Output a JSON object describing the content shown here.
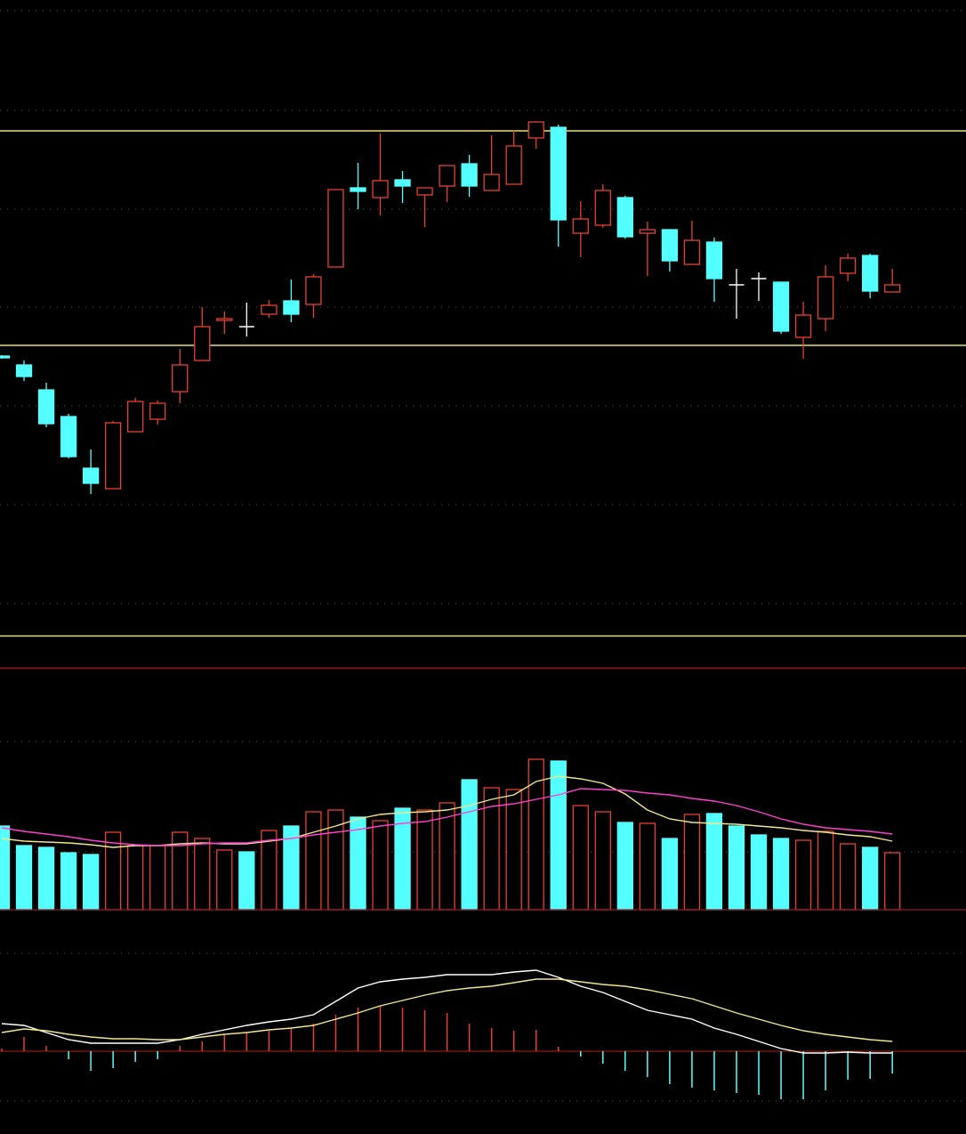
{
  "chart_data": [
    {
      "type": "candlestick",
      "open": [
        40.0,
        39.0,
        36.2,
        33.2,
        27.4,
        25.1,
        31.5,
        32.9,
        36.0,
        39.5,
        44.0,
        43.3,
        44.7,
        46.2,
        45.8,
        50.0,
        58.9,
        57.8,
        59.8,
        58.1,
        59.1,
        61.6,
        58.6,
        59.3,
        64.5,
        65.7,
        53.8,
        54.7,
        57.8,
        53.8,
        54.2,
        50.3,
        52.8,
        48.0,
        48.7,
        48.3,
        42.1,
        44.2,
        49.3,
        51.3,
        47.2
      ],
      "high": [
        40.1,
        39.5,
        37.0,
        33.5,
        29.5,
        32.7,
        35.3,
        35.0,
        40.8,
        45.5,
        45.0,
        46.0,
        46.3,
        48.6,
        49.2,
        58.7,
        61.7,
        65.0,
        60.8,
        58.9,
        61.4,
        62.6,
        64.8,
        65.4,
        66.3,
        66.0,
        57.4,
        59.3,
        58.0,
        55.1,
        54.2,
        55.2,
        53.3,
        49.8,
        49.4,
        48.3,
        46.1,
        50.2,
        51.5,
        51.5,
        49.8
      ],
      "low": [
        39.7,
        37.2,
        32.0,
        28.5,
        24.5,
        25.1,
        31.5,
        32.3,
        34.7,
        39.5,
        42.5,
        42.2,
        44.3,
        43.8,
        44.3,
        50.0,
        56.5,
        55.8,
        57.2,
        54.5,
        57.3,
        57.9,
        58.6,
        59.3,
        63.3,
        52.3,
        51.1,
        54.4,
        53.2,
        49.0,
        49.5,
        50.3,
        46.1,
        44.2,
        46.2,
        42.5,
        39.7,
        42.8,
        48.4,
        46.5,
        47.2
      ],
      "close": [
        39.8,
        37.7,
        32.4,
        28.7,
        25.7,
        32.5,
        34.9,
        34.7,
        39.0,
        43.3,
        44.2,
        43.3,
        45.7,
        44.7,
        48.9,
        58.7,
        58.5,
        59.7,
        59.1,
        58.9,
        61.4,
        59.1,
        60.4,
        63.6,
        66.3,
        55.3,
        55.4,
        58.6,
        53.4,
        54.2,
        50.7,
        53.0,
        48.7,
        48.0,
        48.7,
        42.8,
        44.6,
        48.9,
        51.0,
        47.3,
        48.0
      ],
      "ylim": [
        8,
        80
      ],
      "yticks": [
        78.8,
        67.6,
        56.5,
        45.5,
        34.4,
        23.3,
        12.2
      ],
      "grid": true,
      "hlines": [
        65.3,
        41.2
      ],
      "hline_color": "#e8e07a",
      "up_color": "#e8412f",
      "down_color": "#54ffff",
      "doji_color": "#ffffff"
    },
    {
      "type": "volume",
      "values": [
        94,
        72,
        70,
        64,
        62,
        87,
        72,
        72,
        87,
        80,
        67,
        65,
        89,
        94,
        110,
        112,
        104,
        100,
        114,
        112,
        120,
        146,
        137,
        135,
        169,
        167,
        117,
        110,
        98,
        97,
        80,
        107,
        108,
        94,
        84,
        80,
        78,
        88,
        74,
        70,
        64
      ],
      "ylim": [
        0,
        200
      ],
      "yticks": [
        189,
        65
      ],
      "grid": true,
      "series": [
        {
          "color": "#f0e68c",
          "values": [
            80,
            77,
            76,
            75,
            73,
            70,
            72,
            72,
            74,
            75,
            74,
            74,
            77,
            80,
            87,
            94,
            102,
            107,
            109,
            110,
            112,
            117,
            124,
            129,
            144,
            150,
            147,
            142,
            130,
            112,
            102,
            98,
            97,
            96,
            94,
            92,
            89,
            87,
            84,
            82,
            77
          ]
        },
        {
          "color": "#ff3fd0",
          "values": [
            92,
            88,
            85,
            82,
            78,
            75,
            73,
            72,
            72,
            74,
            75,
            75,
            78,
            80,
            84,
            87,
            90,
            94,
            97,
            99,
            104,
            110,
            116,
            119,
            124,
            129,
            136,
            135,
            134,
            131,
            129,
            125,
            122,
            117,
            110,
            102,
            96,
            92,
            90,
            88,
            85
          ]
        }
      ]
    },
    {
      "type": "macd",
      "histogram": [
        3,
        16,
        6,
        -9,
        -22,
        -19,
        -12,
        -9,
        6,
        11,
        19,
        21,
        23,
        26,
        31,
        41,
        49,
        51,
        49,
        46,
        43,
        31,
        26,
        23,
        24,
        5,
        -6,
        -14,
        -22,
        -29,
        -37,
        -41,
        -44,
        -47,
        -49,
        -54,
        -54,
        -44,
        -32,
        -31,
        -25
      ],
      "ylim": [
        -93,
        150
      ],
      "yticks": [
        110,
        -56
      ],
      "grid": true,
      "series": [
        {
          "color": "#ffffff",
          "values": [
            31,
            29,
            21,
            13,
            9,
            9,
            9,
            9,
            13,
            19,
            24,
            29,
            33,
            36,
            41,
            56,
            71,
            78,
            81,
            83,
            86,
            86,
            86,
            89,
            91,
            83,
            73,
            66,
            56,
            46,
            41,
            36,
            26,
            19,
            11,
            3,
            -2,
            -2,
            -1,
            -2,
            -2
          ]
        },
        {
          "color": "#f0e68c",
          "values": [
            21,
            25,
            23,
            19,
            16,
            14,
            14,
            13,
            13,
            16,
            19,
            21,
            24,
            26,
            29,
            36,
            43,
            51,
            57,
            63,
            68,
            71,
            73,
            77,
            81,
            81,
            78,
            75,
            73,
            69,
            64,
            59,
            51,
            43,
            36,
            29,
            23,
            19,
            16,
            13,
            11
          ]
        }
      ]
    }
  ]
}
